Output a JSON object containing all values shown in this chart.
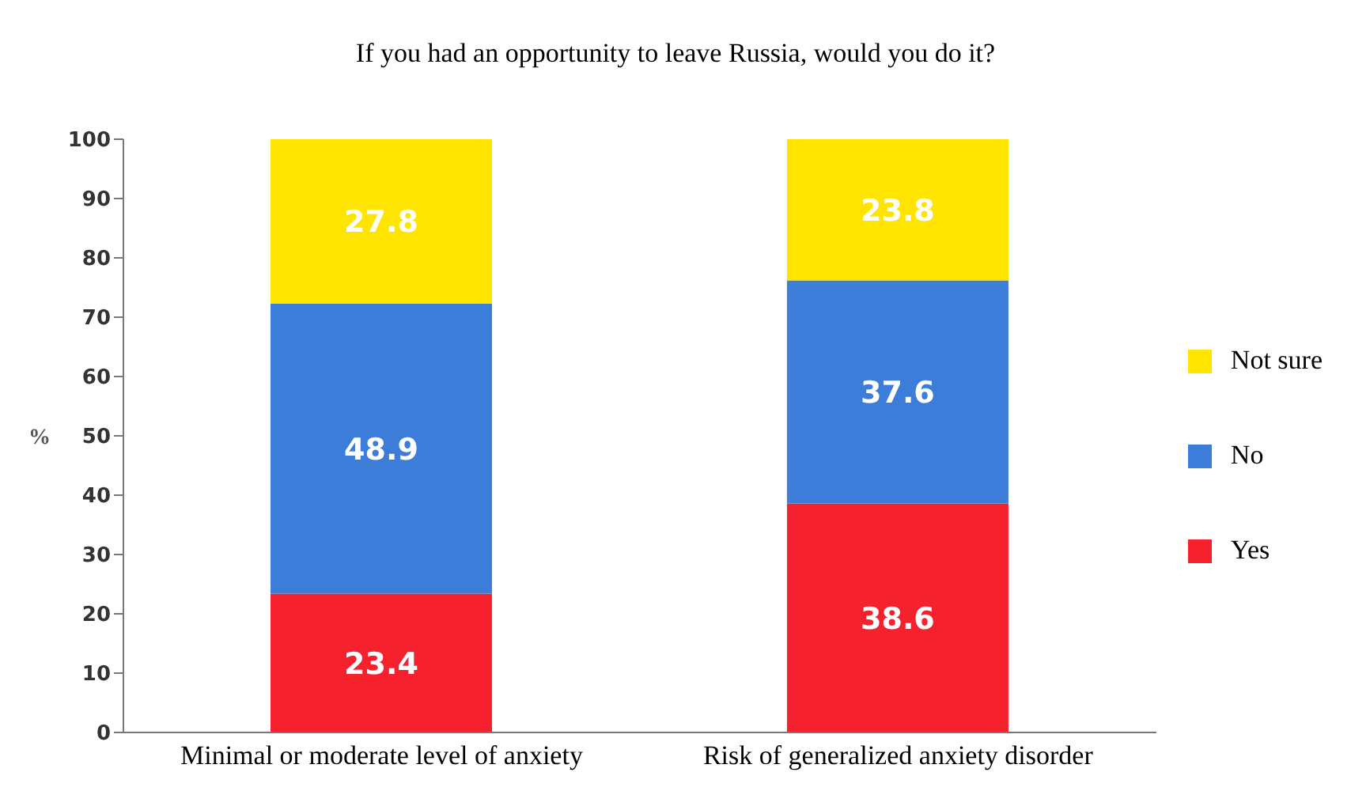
{
  "chart_data": {
    "type": "bar",
    "title": "If you had an opportunity to leave Russia, would you do it?",
    "ylabel": "%",
    "categories": [
      "Minimal or moderate level of anxiety",
      "Risk of generalized anxiety disorder"
    ],
    "series": [
      {
        "name": "Yes",
        "color": "#f5222d",
        "values": [
          23.4,
          38.6
        ]
      },
      {
        "name": "No",
        "color": "#3b7dd8",
        "values": [
          48.9,
          37.6
        ]
      },
      {
        "name": "Not sure",
        "color": "#ffe400",
        "values": [
          27.8,
          23.8
        ]
      }
    ],
    "stacked": true,
    "data_labels": true,
    "ylim": [
      0,
      100
    ],
    "yticks": [
      0,
      10,
      20,
      30,
      40,
      50,
      60,
      70,
      80,
      90,
      100
    ],
    "grid": false,
    "legend": "right"
  }
}
